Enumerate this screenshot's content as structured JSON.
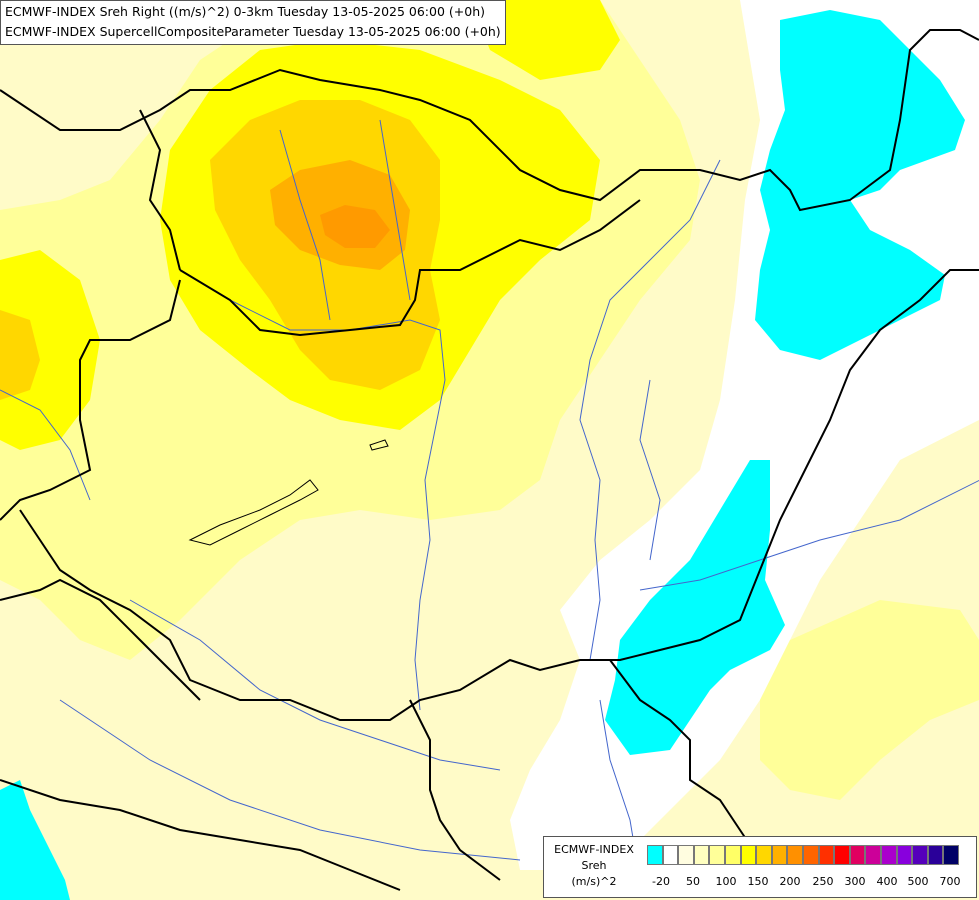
{
  "header": {
    "line1": "ECMWF-INDEX Sreh Right ((m/s)^2) 0-3km Tuesday 13-05-2025 06:00 (+0h)",
    "line2": "ECMWF-INDEX SupercellCompositeParameter Tuesday 13-05-2025 06:00 (+0h)"
  },
  "legend": {
    "title1": "ECMWF-INDEX",
    "title2": "Sreh",
    "unit": "(m/s)^2",
    "colors": [
      "#00ffff",
      "#ffffff",
      "#fffde0",
      "#ffffc0",
      "#ffff99",
      "#ffff66",
      "#ffff00",
      "#ffd700",
      "#ffb000",
      "#ff9000",
      "#ff6400",
      "#ff3000",
      "#ff0000",
      "#e00060",
      "#cc0099",
      "#aa00cc",
      "#8800dd",
      "#5500bb",
      "#2a0099",
      "#000066"
    ],
    "ticks": [
      "-20",
      "50",
      "100",
      "150",
      "200",
      "250",
      "300",
      "400",
      "500",
      "700"
    ]
  },
  "colors": {
    "cyan": "#00ffff",
    "pale_yellow": "#fffbc8",
    "light_yellow": "#ffff99",
    "yellow": "#ffff00",
    "gold": "#ffd700",
    "orange": "#ffaa00",
    "border": "#000000",
    "river": "#4466cc"
  }
}
